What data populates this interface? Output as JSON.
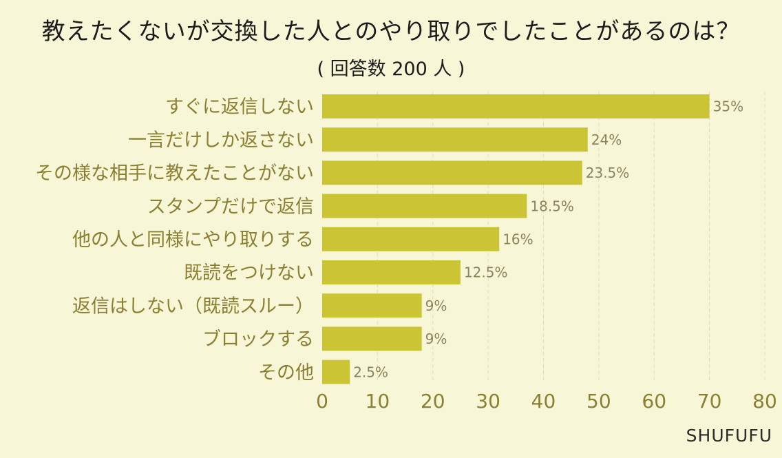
{
  "chart_data": {
    "type": "bar",
    "orientation": "horizontal",
    "title": "教えたくないが交換した人とのやり取りでしたことがあるのは？",
    "subtitle": "( 回答数 200 人 )",
    "categories": [
      "すぐに返信しない",
      "一言だけしか返さない",
      "その様な相手に教えたことがない",
      "スタンプだけで返信",
      "他の人と同様にやり取りする",
      "既読をつけない",
      "返信はしない（既読スルー）",
      "ブロックする",
      "その他"
    ],
    "values": [
      35,
      24,
      23.5,
      18.5,
      16,
      12.5,
      9,
      9,
      2.5
    ],
    "value_labels": [
      "35%",
      "24%",
      "23.5%",
      "18.5%",
      "16%",
      "12.5%",
      "9%",
      "9%",
      "2.5%"
    ],
    "value_axis_scale": 2,
    "xlim": [
      0,
      80
    ],
    "xticks": [
      "0",
      "10",
      "20",
      "30",
      "40",
      "50",
      "60",
      "70",
      "80"
    ],
    "grid": true,
    "legend": "none",
    "bar_color": "#cbc536",
    "label_color": "#8a7f32",
    "value_label_color": "#8a8458",
    "tick_color": "#8a7f32",
    "grid_color": "#dedcc0"
  },
  "watermark": "SHUFUFU"
}
